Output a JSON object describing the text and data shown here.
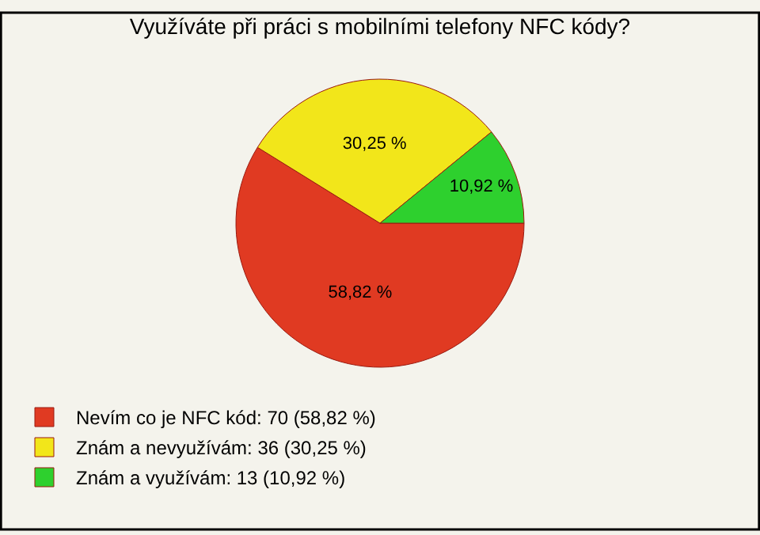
{
  "chart_data": {
    "type": "pie",
    "title": "Využíváte při práci s mobilními telefony NFC kódy?",
    "categories": [
      "Nevím co je NFC kód: 70 (58,82 %)",
      "Znám a nevyužívám: 36 (30,25 %)",
      "Znám a využívám: 13 (10,92 %)"
    ],
    "values": [
      58.82,
      30.25,
      10.92
    ],
    "value_labels": [
      "58,82 %",
      "30,25 %",
      "10,92 %"
    ],
    "colors": [
      "#e03a22",
      "#f2e61a",
      "#2ed02e"
    ],
    "legend": "bottom left"
  }
}
